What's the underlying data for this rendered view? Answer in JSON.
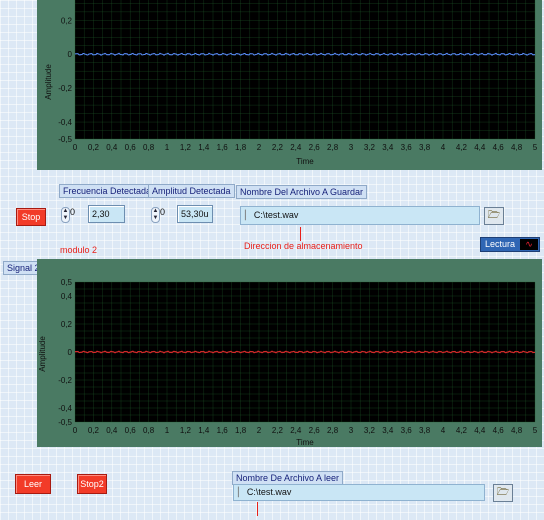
{
  "chart1": {
    "ylabel": "Amplitude",
    "xlabel": "Time",
    "yticks": [
      "0,2",
      "0",
      "-0,2",
      "-0,4",
      "-0,5"
    ],
    "xticks": [
      "0",
      "0,2",
      "0,4",
      "0,6",
      "0,8",
      "1",
      "1,2",
      "1,4",
      "1,6",
      "1,8",
      "2",
      "2,2",
      "2,4",
      "2,6",
      "2,8",
      "3",
      "3,2",
      "3,4",
      "3,6",
      "3,8",
      "4",
      "4,2",
      "4,4",
      "4,6",
      "4,8",
      "5"
    ],
    "trace_color": "#5a8cff"
  },
  "frecuencia": {
    "label": "Frecuencia Detectada",
    "radix": "0",
    "value": "2,30"
  },
  "amplitud": {
    "label": "Amplitud Detectada",
    "radix": "0",
    "value": "53,30u"
  },
  "guardar": {
    "label": "Nombre Del Archivo A Guardar",
    "path": "C:\\test.wav"
  },
  "stop_label": "Stop",
  "modulo_label": "modulo 2",
  "direccion_label": "Direccion de almacenamiento",
  "lectura_label": "Lectura",
  "signal2_label": "Signal 2",
  "chart2": {
    "ylabel": "Amplitude",
    "xlabel": "Time",
    "yticks": [
      "0,5",
      "0,4",
      "0,2",
      "0",
      "-0,2",
      "-0,4",
      "-0,5"
    ],
    "xticks": [
      "0",
      "0,2",
      "0,4",
      "0,6",
      "0,8",
      "1",
      "1,2",
      "1,4",
      "1,6",
      "1,8",
      "2",
      "2,2",
      "2,4",
      "2,6",
      "2,8",
      "3",
      "3,2",
      "3,4",
      "3,6",
      "3,8",
      "4",
      "4,2",
      "4,4",
      "4,6",
      "4,8",
      "5"
    ],
    "trace_color": "#d42a2a"
  },
  "leer_label": "Leer",
  "stop2_label": "Stop2",
  "leer_archivo": {
    "label": "Nombre De Archivo A leer",
    "path": "C:\\test.wav"
  },
  "colors": {
    "plot_bg": "#000000",
    "grid": "#1f5a2a",
    "frame": "#4a7a63",
    "red_button": "#f23b28"
  }
}
